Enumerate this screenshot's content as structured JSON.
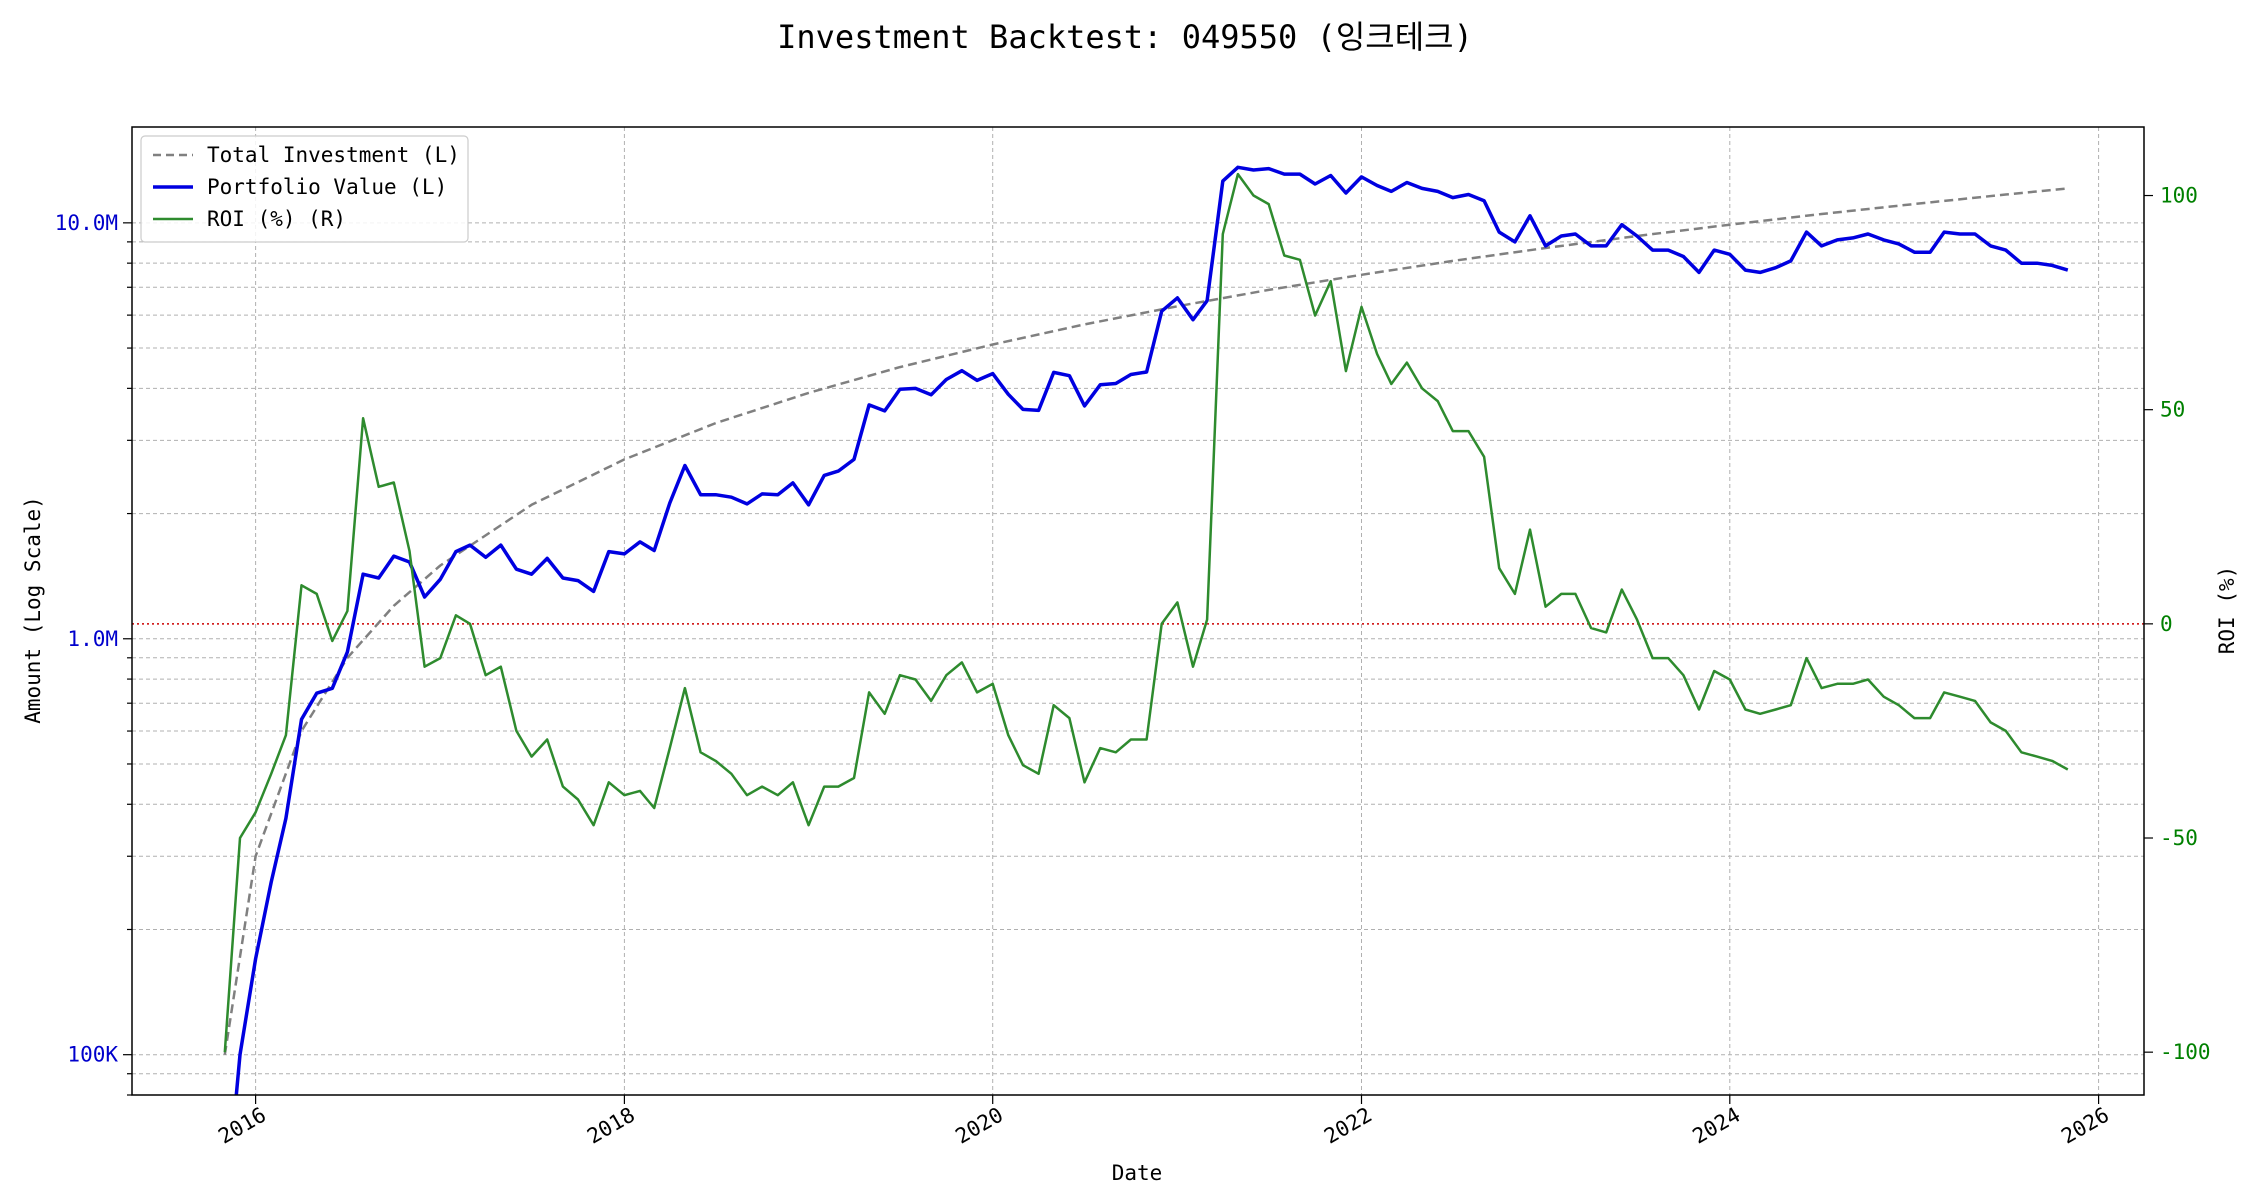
{
  "chart_data": {
    "type": "line",
    "title": "Investment Backtest: 049550 (잉크테크)",
    "xlabel": "Date",
    "ylabel_left": "Amount (Log Scale)",
    "ylabel_right": "ROI (%)",
    "left_scale": "log",
    "left_ylim": [
      80000,
      17000000
    ],
    "right_ylim": [
      -110,
      116
    ],
    "xlim": [
      "2015-05-01",
      "2026-04-01"
    ],
    "grid": true,
    "legend_location": "upper-left",
    "colors": {
      "total_investment": "#808080",
      "portfolio_value": "#0000e0",
      "roi": "#2e8b2e",
      "zero_line": "#cc0000",
      "left_axis": "#0000cc",
      "right_axis": "#008000"
    },
    "left_ticks": [
      {
        "value": 100000,
        "label": "100K"
      },
      {
        "value": 1000000,
        "label": "1.0M"
      },
      {
        "value": 10000000,
        "label": "10.0M"
      }
    ],
    "right_ticks": [
      {
        "value": -100,
        "label": "-100"
      },
      {
        "value": -50,
        "label": "-50"
      },
      {
        "value": 0,
        "label": "0"
      },
      {
        "value": 50,
        "label": "50"
      },
      {
        "value": 100,
        "label": "100"
      }
    ],
    "x_ticks": [
      {
        "value": "2016-01-01",
        "label": "2016"
      },
      {
        "value": "2018-01-01",
        "label": "2018"
      },
      {
        "value": "2020-01-01",
        "label": "2020"
      },
      {
        "value": "2022-01-01",
        "label": "2022"
      },
      {
        "value": "2024-01-01",
        "label": "2024"
      },
      {
        "value": "2026-01-01",
        "label": "2026"
      }
    ],
    "zero_line_value": 0,
    "series": [
      {
        "name": "Total Investment (L)",
        "axis": "left",
        "style": "dashed",
        "x": [
          "2015-11-01",
          "2016-01-01",
          "2016-04-01",
          "2016-07-01",
          "2016-10-01",
          "2017-01-01",
          "2017-07-01",
          "2018-01-01",
          "2018-07-01",
          "2019-01-01",
          "2019-07-01",
          "2020-01-01",
          "2020-07-01",
          "2021-01-01",
          "2021-07-01",
          "2022-01-01",
          "2022-07-01",
          "2023-01-01",
          "2023-07-01",
          "2024-01-01",
          "2024-07-01",
          "2025-01-01",
          "2025-07-01",
          "2025-11-01"
        ],
        "values": [
          100000,
          300000,
          600000,
          900000,
          1200000,
          1500000,
          2100000,
          2700000,
          3300000,
          3900000,
          4500000,
          5100000,
          5700000,
          6300000,
          6900000,
          7500000,
          8100000,
          8700000,
          9300000,
          9900000,
          10500000,
          11100000,
          11700000,
          12100000
        ]
      },
      {
        "name": "Portfolio Value (L)",
        "axis": "left",
        "style": "solid",
        "x": [
          "2015-11-01",
          "2015-12-01",
          "2016-01-01",
          "2016-02-01",
          "2016-03-01",
          "2016-04-01",
          "2016-05-01",
          "2016-06-01",
          "2016-07-01",
          "2016-08-01",
          "2016-09-01",
          "2016-10-01",
          "2016-11-01",
          "2016-12-01",
          "2017-01-01",
          "2017-02-01",
          "2017-03-01",
          "2017-04-01",
          "2017-05-01",
          "2017-06-01",
          "2017-07-01",
          "2017-08-01",
          "2017-09-01",
          "2017-10-01",
          "2017-11-01",
          "2017-12-01",
          "2018-01-01",
          "2018-02-01",
          "2018-03-01",
          "2018-04-01",
          "2018-05-01",
          "2018-06-01",
          "2018-07-01",
          "2018-08-01",
          "2018-09-01",
          "2018-10-01",
          "2018-11-01",
          "2018-12-01",
          "2019-01-01",
          "2019-02-01",
          "2019-03-01",
          "2019-04-01",
          "2019-05-01",
          "2019-06-01",
          "2019-07-01",
          "2019-08-01",
          "2019-09-01",
          "2019-10-01",
          "2019-11-01",
          "2019-12-01",
          "2020-01-01",
          "2020-02-01",
          "2020-03-01",
          "2020-04-01",
          "2020-05-01",
          "2020-06-01",
          "2020-07-01",
          "2020-08-01",
          "2020-09-01",
          "2020-10-01",
          "2020-11-01",
          "2020-12-01",
          "2021-01-01",
          "2021-02-01",
          "2021-03-01",
          "2021-04-01",
          "2021-05-01",
          "2021-06-01",
          "2021-07-01",
          "2021-08-01",
          "2021-09-01",
          "2021-10-01",
          "2021-11-01",
          "2021-12-01",
          "2022-01-01",
          "2022-02-01",
          "2022-03-01",
          "2022-04-01",
          "2022-05-01",
          "2022-06-01",
          "2022-07-01",
          "2022-08-01",
          "2022-09-01",
          "2022-10-01",
          "2022-11-01",
          "2022-12-01",
          "2023-01-01",
          "2023-02-01",
          "2023-03-01",
          "2023-04-01",
          "2023-05-01",
          "2023-06-01",
          "2023-07-01",
          "2023-08-01",
          "2023-09-01",
          "2023-10-01",
          "2023-11-01",
          "2023-12-01",
          "2024-01-01",
          "2024-02-01",
          "2024-03-01",
          "2024-04-01",
          "2024-05-01",
          "2024-06-01",
          "2024-07-01",
          "2024-08-01",
          "2024-09-01",
          "2024-10-01",
          "2024-11-01",
          "2024-12-01",
          "2025-01-01",
          "2025-02-01",
          "2025-03-01",
          "2025-04-01",
          "2025-05-01",
          "2025-06-01",
          "2025-07-01",
          "2025-08-01",
          "2025-09-01",
          "2025-10-01",
          "2025-11-01"
        ],
        "values": [
          40000,
          100000,
          170000,
          260000,
          370000,
          640000,
          740000,
          760000,
          930000,
          1430000,
          1400000,
          1580000,
          1530000,
          1260000,
          1390000,
          1620000,
          1680000,
          1570000,
          1680000,
          1470000,
          1430000,
          1560000,
          1400000,
          1380000,
          1300000,
          1620000,
          1600000,
          1710000,
          1630000,
          2120000,
          2610000,
          2220000,
          2220000,
          2190000,
          2110000,
          2230000,
          2220000,
          2370000,
          2100000,
          2470000,
          2530000,
          2700000,
          3650000,
          3530000,
          3980000,
          4000000,
          3860000,
          4200000,
          4410000,
          4180000,
          4340000,
          3870000,
          3560000,
          3540000,
          4370000,
          4290000,
          3630000,
          4080000,
          4110000,
          4320000,
          4380000,
          6130000,
          6600000,
          5850000,
          6500000,
          12600000,
          13600000,
          13400000,
          13500000,
          13100000,
          13100000,
          12400000,
          13000000,
          11800000,
          12900000,
          12300000,
          11900000,
          12500000,
          12100000,
          11900000,
          11500000,
          11700000,
          11300000,
          9500000,
          9000000,
          10400000,
          8800000,
          9300000,
          9400000,
          8800000,
          8800000,
          9900000,
          9300000,
          8600000,
          8600000,
          8300000,
          7600000,
          8600000,
          8400000,
          7700000,
          7600000,
          7800000,
          8100000,
          9500000,
          8800000,
          9100000,
          9200000,
          9400000,
          9100000,
          8900000,
          8500000,
          8500000,
          9500000,
          9400000,
          9400000,
          8800000,
          8600000,
          8000000,
          8000000,
          7900000,
          7700000
        ]
      },
      {
        "name": "ROI (%) (R)",
        "axis": "right",
        "style": "solid",
        "x": [
          "2015-11-01",
          "2015-12-01",
          "2016-01-01",
          "2016-02-01",
          "2016-03-01",
          "2016-04-01",
          "2016-05-01",
          "2016-06-01",
          "2016-07-01",
          "2016-08-01",
          "2016-09-01",
          "2016-10-01",
          "2016-11-01",
          "2016-12-01",
          "2017-01-01",
          "2017-02-01",
          "2017-03-01",
          "2017-04-01",
          "2017-05-01",
          "2017-06-01",
          "2017-07-01",
          "2017-08-01",
          "2017-09-01",
          "2017-10-01",
          "2017-11-01",
          "2017-12-01",
          "2018-01-01",
          "2018-02-01",
          "2018-03-01",
          "2018-04-01",
          "2018-05-01",
          "2018-06-01",
          "2018-07-01",
          "2018-08-01",
          "2018-09-01",
          "2018-10-01",
          "2018-11-01",
          "2018-12-01",
          "2019-01-01",
          "2019-02-01",
          "2019-03-01",
          "2019-04-01",
          "2019-05-01",
          "2019-06-01",
          "2019-07-01",
          "2019-08-01",
          "2019-09-01",
          "2019-10-01",
          "2019-11-01",
          "2019-12-01",
          "2020-01-01",
          "2020-02-01",
          "2020-03-01",
          "2020-04-01",
          "2020-05-01",
          "2020-06-01",
          "2020-07-01",
          "2020-08-01",
          "2020-09-01",
          "2020-10-01",
          "2020-11-01",
          "2020-12-01",
          "2021-01-01",
          "2021-02-01",
          "2021-03-01",
          "2021-04-01",
          "2021-05-01",
          "2021-06-01",
          "2021-07-01",
          "2021-08-01",
          "2021-09-01",
          "2021-10-01",
          "2021-11-01",
          "2021-12-01",
          "2022-01-01",
          "2022-02-01",
          "2022-03-01",
          "2022-04-01",
          "2022-05-01",
          "2022-06-01",
          "2022-07-01",
          "2022-08-01",
          "2022-09-01",
          "2022-10-01",
          "2022-11-01",
          "2022-12-01",
          "2023-01-01",
          "2023-02-01",
          "2023-03-01",
          "2023-04-01",
          "2023-05-01",
          "2023-06-01",
          "2023-07-01",
          "2023-08-01",
          "2023-09-01",
          "2023-10-01",
          "2023-11-01",
          "2023-12-01",
          "2024-01-01",
          "2024-02-01",
          "2024-03-01",
          "2024-04-01",
          "2024-05-01",
          "2024-06-01",
          "2024-07-01",
          "2024-08-01",
          "2024-09-01",
          "2024-10-01",
          "2024-11-01",
          "2024-12-01",
          "2025-01-01",
          "2025-02-01",
          "2025-03-01",
          "2025-04-01",
          "2025-05-01",
          "2025-06-01",
          "2025-07-01",
          "2025-08-01",
          "2025-09-01",
          "2025-10-01",
          "2025-11-01"
        ],
        "values": [
          -100,
          -50,
          -44,
          -35,
          -26,
          9,
          7,
          -4,
          3,
          48,
          32,
          33,
          17,
          -10,
          -8,
          2,
          0,
          -12,
          -10,
          -25,
          -31,
          -27,
          -38,
          -41,
          -47,
          -37,
          -40,
          -39,
          -43,
          -29,
          -15,
          -30,
          -32,
          -35,
          -40,
          -38,
          -40,
          -37,
          -47,
          -38,
          -38,
          -36,
          -16,
          -21,
          -12,
          -13,
          -18,
          -12,
          -9,
          -16,
          -14,
          -26,
          -33,
          -35,
          -19,
          -22,
          -37,
          -29,
          -30,
          -27,
          -27,
          0,
          5,
          -10,
          1,
          91,
          105,
          100,
          98,
          86,
          85,
          72,
          80,
          59,
          74,
          63,
          56,
          61,
          55,
          52,
          45,
          45,
          39,
          13,
          7,
          22,
          4,
          7,
          7,
          -1,
          -2,
          8,
          1,
          -8,
          -8,
          -12,
          -20,
          -11,
          -13,
          -20,
          -21,
          -20,
          -19,
          -8,
          -15,
          -14,
          -14,
          -13,
          -17,
          -19,
          -22,
          -22,
          -16,
          -17,
          -18,
          -23,
          -25,
          -30,
          -31,
          -32,
          -34
        ]
      }
    ]
  }
}
